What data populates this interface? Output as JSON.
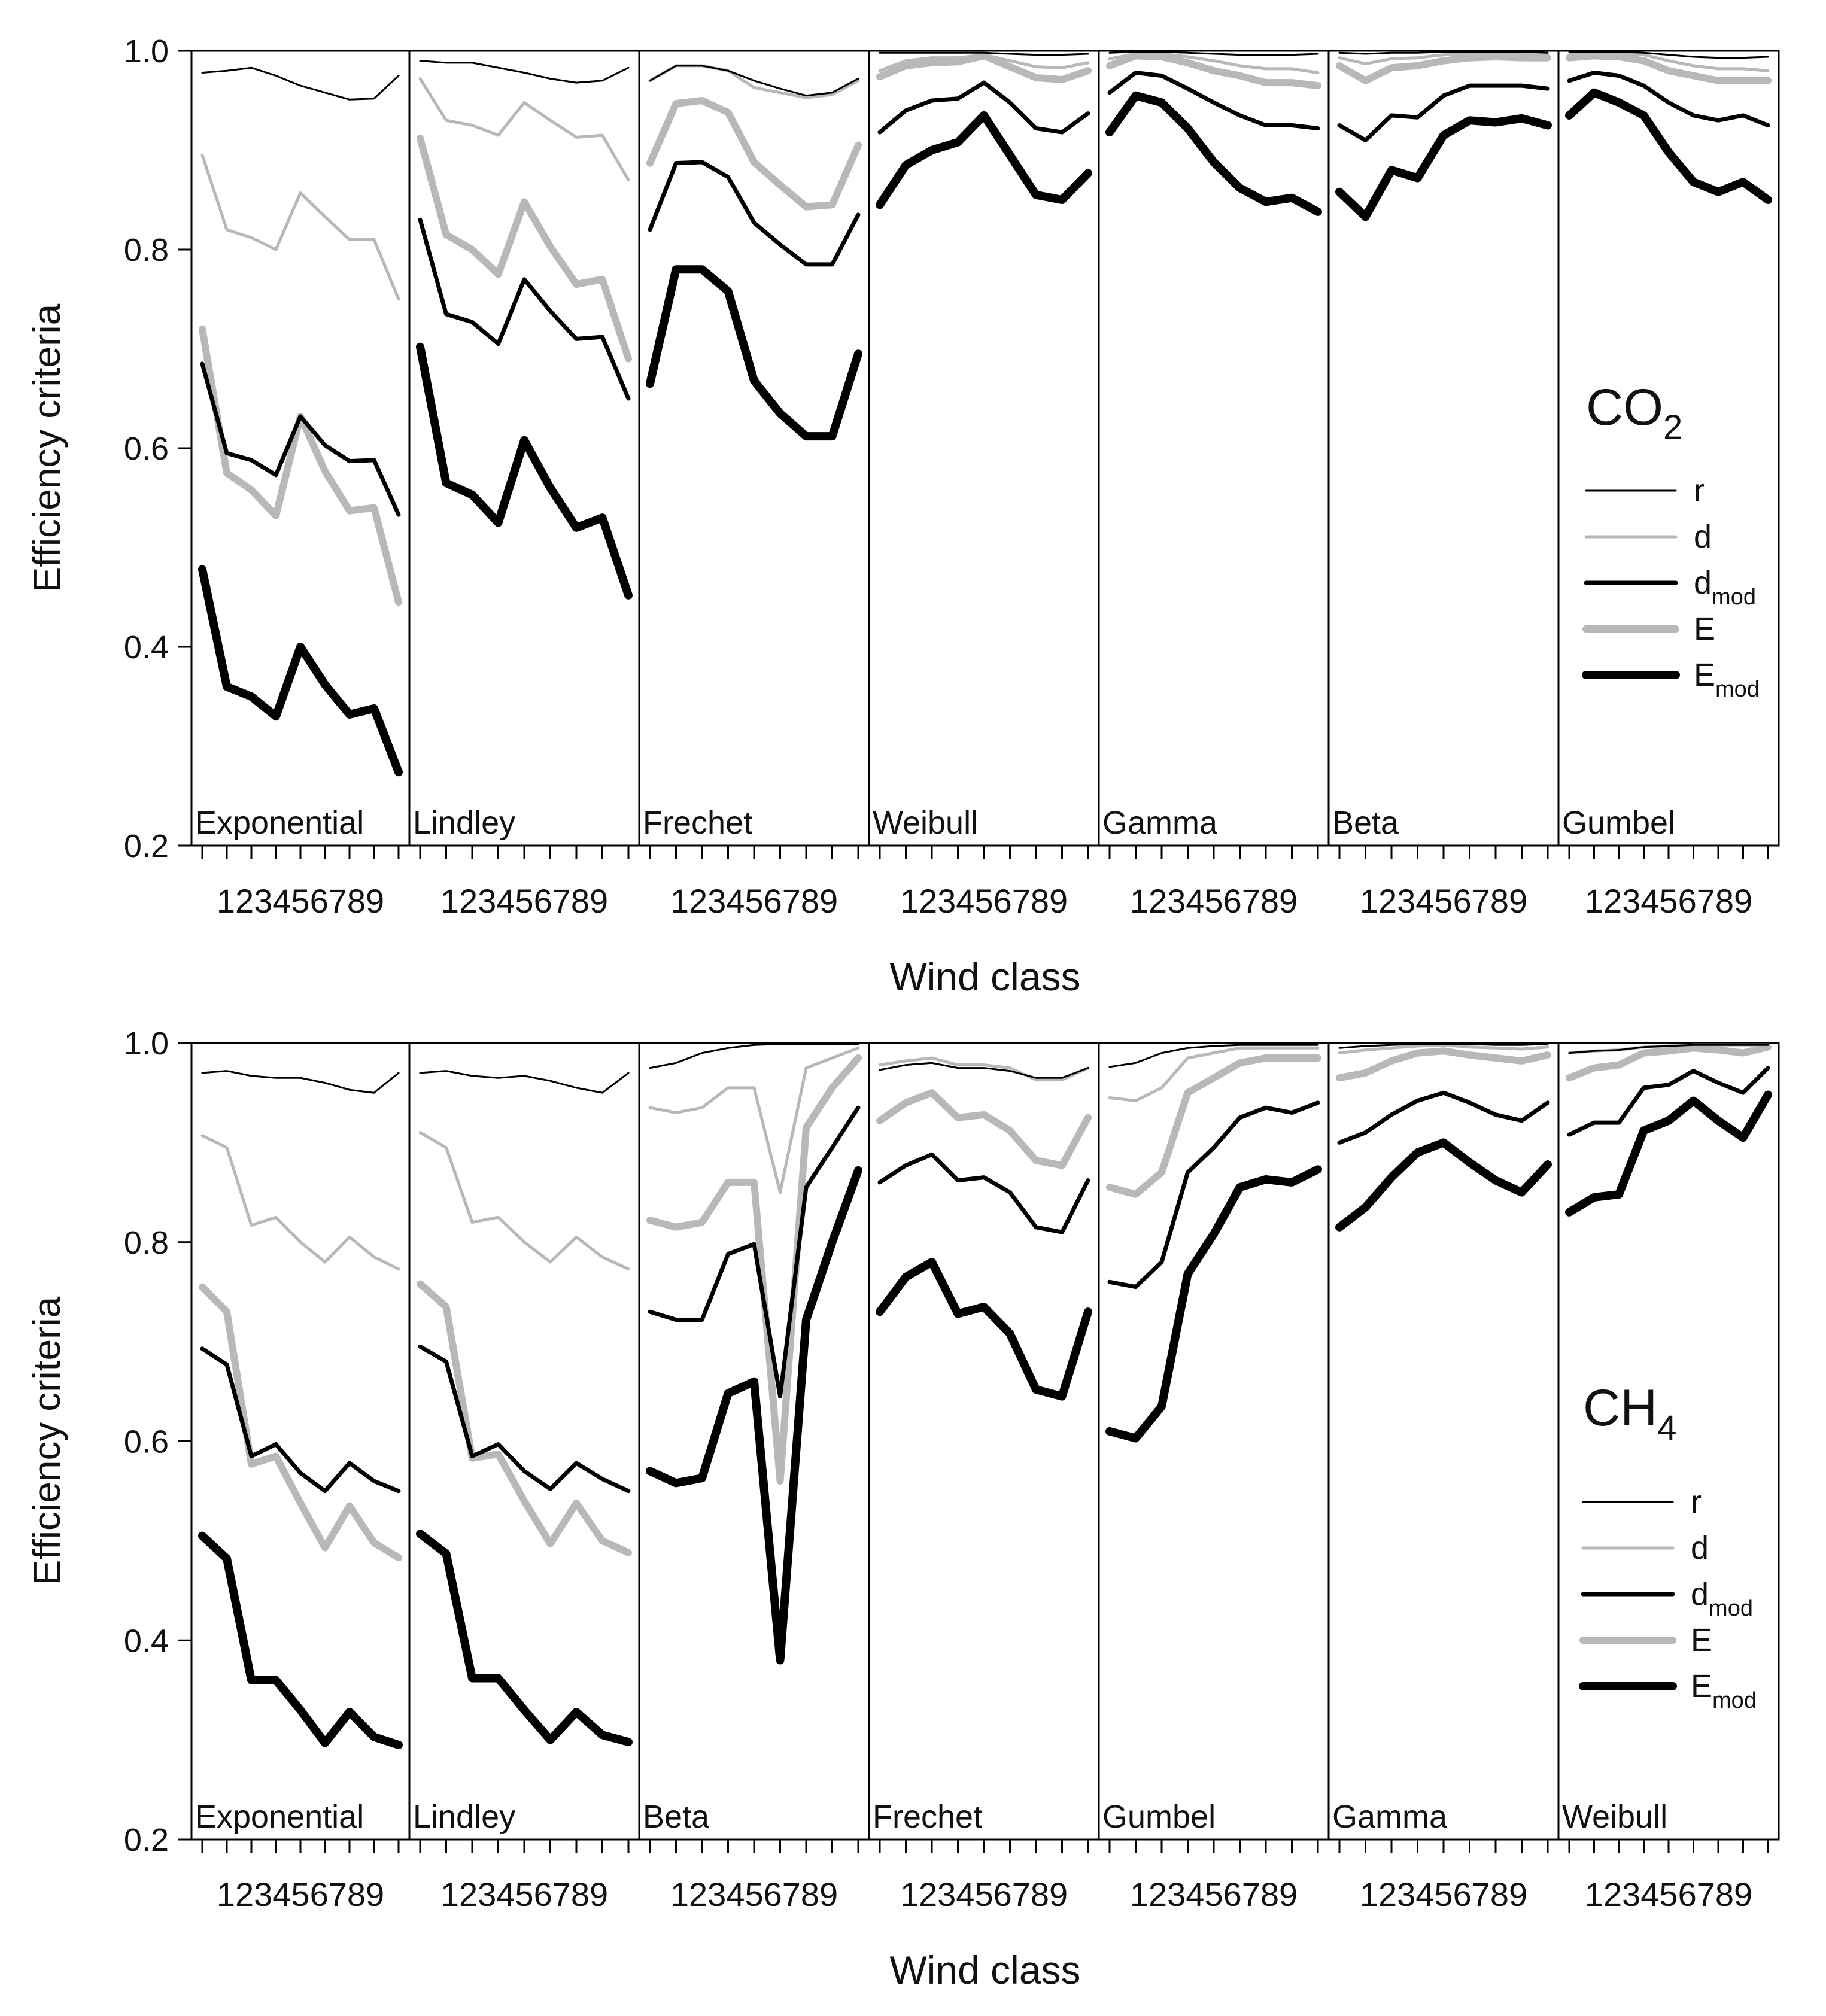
{
  "chart_data": [
    {
      "type": "line",
      "title": "",
      "gas_label": "CO",
      "gas_subscript": "2",
      "xlabel": "Wind class",
      "ylabel": "Efficiency criteria",
      "ylim": [
        0.2,
        1.0
      ],
      "yticks": [
        "0.2",
        "0.4",
        "0.6",
        "0.8",
        "1.0"
      ],
      "x": [
        1,
        2,
        3,
        4,
        5,
        6,
        7,
        8,
        9
      ],
      "x_tick_text": "123456789",
      "legend": [
        {
          "key": "r",
          "main": "r",
          "sub": ""
        },
        {
          "key": "d",
          "main": "d",
          "sub": ""
        },
        {
          "key": "dmod",
          "main": "d",
          "sub": "mod"
        },
        {
          "key": "E",
          "main": "E",
          "sub": ""
        },
        {
          "key": "Emod",
          "main": "E",
          "sub": "mod"
        }
      ],
      "styles": {
        "r": {
          "color": "#000000",
          "width": 3
        },
        "d": {
          "color": "#b8b8b8",
          "width": 5
        },
        "dmod": {
          "color": "#000000",
          "width": 7
        },
        "E": {
          "color": "#b8b8b8",
          "width": 12
        },
        "Emod": {
          "color": "#000000",
          "width": 14
        }
      },
      "panels": [
        {
          "name": "Exponential",
          "series": {
            "r": [
              0.978,
              0.98,
              0.983,
              0.975,
              0.965,
              0.958,
              0.951,
              0.952,
              0.975
            ],
            "d": [
              0.895,
              0.82,
              0.812,
              0.8,
              0.857,
              0.833,
              0.81,
              0.81,
              0.75
            ],
            "dmod": [
              0.685,
              0.595,
              0.588,
              0.573,
              0.632,
              0.603,
              0.587,
              0.588,
              0.533
            ],
            "E": [
              0.72,
              0.575,
              0.558,
              0.532,
              0.632,
              0.577,
              0.537,
              0.54,
              0.445
            ],
            "Emod": [
              0.478,
              0.36,
              0.35,
              0.33,
              0.4,
              0.362,
              0.332,
              0.338,
              0.274
            ]
          }
        },
        {
          "name": "Lindley",
          "series": {
            "r": [
              0.99,
              0.988,
              0.988,
              0.983,
              0.978,
              0.972,
              0.968,
              0.97,
              0.983
            ],
            "d": [
              0.972,
              0.93,
              0.925,
              0.915,
              0.948,
              0.93,
              0.913,
              0.915,
              0.87
            ],
            "dmod": [
              0.83,
              0.735,
              0.727,
              0.705,
              0.77,
              0.738,
              0.71,
              0.712,
              0.65
            ],
            "E": [
              0.912,
              0.815,
              0.8,
              0.775,
              0.848,
              0.803,
              0.765,
              0.77,
              0.69
            ],
            "Emod": [
              0.702,
              0.565,
              0.553,
              0.525,
              0.608,
              0.56,
              0.52,
              0.53,
              0.452
            ]
          }
        },
        {
          "name": "Frechet",
          "series": {
            "r": [
              0.97,
              0.985,
              0.985,
              0.98,
              0.97,
              0.962,
              0.955,
              0.958,
              0.972
            ],
            "d": [
              0.97,
              0.985,
              0.985,
              0.98,
              0.963,
              0.958,
              0.953,
              0.956,
              0.97
            ],
            "dmod": [
              0.82,
              0.887,
              0.888,
              0.873,
              0.827,
              0.805,
              0.785,
              0.785,
              0.835
            ],
            "E": [
              0.887,
              0.947,
              0.95,
              0.938,
              0.888,
              0.865,
              0.843,
              0.845,
              0.905
            ],
            "Emod": [
              0.665,
              0.78,
              0.78,
              0.758,
              0.668,
              0.635,
              0.612,
              0.612,
              0.695
            ]
          }
        },
        {
          "name": "Weibull",
          "series": {
            "r": [
              0.998,
              0.998,
              0.998,
              0.998,
              0.998,
              0.997,
              0.996,
              0.996,
              0.997
            ],
            "d": [
              0.98,
              0.99,
              0.993,
              0.993,
              0.996,
              0.99,
              0.984,
              0.983,
              0.988
            ],
            "dmod": [
              0.918,
              0.94,
              0.95,
              0.952,
              0.968,
              0.948,
              0.922,
              0.918,
              0.937
            ],
            "E": [
              0.974,
              0.985,
              0.988,
              0.989,
              0.995,
              0.984,
              0.973,
              0.971,
              0.98
            ],
            "Emod": [
              0.845,
              0.885,
              0.9,
              0.908,
              0.935,
              0.895,
              0.855,
              0.85,
              0.877
            ]
          }
        },
        {
          "name": "Gamma",
          "series": {
            "r": [
              0.998,
              0.999,
              0.999,
              0.998,
              0.997,
              0.996,
              0.996,
              0.996,
              0.997
            ],
            "d": [
              0.992,
              0.997,
              0.997,
              0.994,
              0.99,
              0.985,
              0.982,
              0.982,
              0.978
            ],
            "dmod": [
              0.958,
              0.978,
              0.975,
              0.962,
              0.948,
              0.935,
              0.925,
              0.925,
              0.922
            ],
            "E": [
              0.985,
              0.995,
              0.994,
              0.988,
              0.98,
              0.975,
              0.968,
              0.968,
              0.965
            ],
            "Emod": [
              0.918,
              0.955,
              0.948,
              0.922,
              0.888,
              0.862,
              0.848,
              0.852,
              0.838
            ]
          }
        },
        {
          "name": "Beta",
          "series": {
            "r": [
              0.998,
              0.997,
              0.998,
              0.998,
              0.999,
              0.999,
              0.999,
              0.999,
              0.998
            ],
            "d": [
              0.993,
              0.987,
              0.992,
              0.993,
              0.996,
              0.997,
              0.997,
              0.996,
              0.996
            ],
            "dmod": [
              0.925,
              0.91,
              0.935,
              0.933,
              0.955,
              0.965,
              0.965,
              0.965,
              0.962
            ],
            "E": [
              0.985,
              0.97,
              0.983,
              0.985,
              0.99,
              0.993,
              0.994,
              0.993,
              0.993
            ],
            "Emod": [
              0.858,
              0.833,
              0.88,
              0.872,
              0.915,
              0.93,
              0.928,
              0.932,
              0.925
            ]
          }
        },
        {
          "name": "Gumbel",
          "series": {
            "r": [
              0.999,
              0.999,
              0.999,
              0.998,
              0.996,
              0.994,
              0.993,
              0.993,
              0.994
            ],
            "d": [
              0.996,
              0.997,
              0.997,
              0.996,
              0.99,
              0.985,
              0.982,
              0.982,
              0.98
            ],
            "dmod": [
              0.97,
              0.978,
              0.975,
              0.965,
              0.948,
              0.935,
              0.93,
              0.935,
              0.925
            ],
            "E": [
              0.993,
              0.995,
              0.994,
              0.99,
              0.98,
              0.975,
              0.97,
              0.97,
              0.97
            ],
            "Emod": [
              0.935,
              0.958,
              0.948,
              0.935,
              0.898,
              0.868,
              0.858,
              0.868,
              0.85
            ]
          }
        }
      ]
    },
    {
      "type": "line",
      "title": "",
      "gas_label": "CH",
      "gas_subscript": "4",
      "xlabel": "Wind class",
      "ylabel": "Efficiency criteria",
      "ylim": [
        0.2,
        1.0
      ],
      "yticks": [
        "0.2",
        "0.4",
        "0.6",
        "0.8",
        "1.0"
      ],
      "x": [
        1,
        2,
        3,
        4,
        5,
        6,
        7,
        8,
        9
      ],
      "x_tick_text": "123456789",
      "legend": [
        {
          "key": "r",
          "main": "r",
          "sub": ""
        },
        {
          "key": "d",
          "main": "d",
          "sub": ""
        },
        {
          "key": "dmod",
          "main": "d",
          "sub": "mod"
        },
        {
          "key": "E",
          "main": "E",
          "sub": ""
        },
        {
          "key": "Emod",
          "main": "E",
          "sub": "mod"
        }
      ],
      "styles": {
        "r": {
          "color": "#000000",
          "width": 3
        },
        "d": {
          "color": "#b8b8b8",
          "width": 5
        },
        "dmod": {
          "color": "#000000",
          "width": 7
        },
        "E": {
          "color": "#b8b8b8",
          "width": 12
        },
        "Emod": {
          "color": "#000000",
          "width": 14
        }
      },
      "panels": [
        {
          "name": "Exponential",
          "series": {
            "r": [
              0.97,
              0.972,
              0.967,
              0.965,
              0.965,
              0.96,
              0.953,
              0.95,
              0.97
            ],
            "d": [
              0.907,
              0.895,
              0.817,
              0.825,
              0.8,
              0.78,
              0.805,
              0.785,
              0.773
            ],
            "dmod": [
              0.693,
              0.677,
              0.585,
              0.597,
              0.568,
              0.55,
              0.578,
              0.56,
              0.55
            ],
            "E": [
              0.755,
              0.73,
              0.577,
              0.585,
              0.538,
              0.493,
              0.535,
              0.498,
              0.483
            ],
            "Emod": [
              0.505,
              0.482,
              0.36,
              0.36,
              0.33,
              0.297,
              0.328,
              0.303,
              0.295
            ]
          }
        },
        {
          "name": "Lindley",
          "series": {
            "r": [
              0.97,
              0.972,
              0.967,
              0.965,
              0.967,
              0.962,
              0.955,
              0.95,
              0.97
            ],
            "d": [
              0.91,
              0.895,
              0.82,
              0.825,
              0.8,
              0.78,
              0.805,
              0.785,
              0.773
            ],
            "dmod": [
              0.695,
              0.68,
              0.585,
              0.597,
              0.57,
              0.552,
              0.578,
              0.562,
              0.55
            ],
            "E": [
              0.758,
              0.735,
              0.583,
              0.587,
              0.54,
              0.497,
              0.538,
              0.5,
              0.488
            ],
            "Emod": [
              0.507,
              0.487,
              0.362,
              0.362,
              0.33,
              0.3,
              0.328,
              0.305,
              0.298
            ]
          }
        },
        {
          "name": "Beta",
          "series": {
            "r": [
              0.975,
              0.98,
              0.99,
              0.995,
              0.998,
              0.999,
              0.999,
              0.999,
              0.999
            ],
            "d": [
              0.935,
              0.93,
              0.935,
              0.955,
              0.955,
              0.85,
              0.975,
              0.985,
              0.995
            ],
            "dmod": [
              0.73,
              0.722,
              0.722,
              0.788,
              0.798,
              0.645,
              0.855,
              0.895,
              0.935
            ],
            "E": [
              0.822,
              0.815,
              0.82,
              0.86,
              0.86,
              0.56,
              0.915,
              0.955,
              0.985
            ],
            "Emod": [
              0.57,
              0.558,
              0.563,
              0.648,
              0.66,
              0.38,
              0.722,
              0.8,
              0.872
            ]
          }
        },
        {
          "name": "Frechet",
          "series": {
            "r": [
              0.973,
              0.978,
              0.98,
              0.975,
              0.975,
              0.972,
              0.965,
              0.965,
              0.975
            ],
            "d": [
              0.978,
              0.982,
              0.985,
              0.978,
              0.978,
              0.975,
              0.963,
              0.963,
              0.975
            ],
            "dmod": [
              0.86,
              0.877,
              0.888,
              0.862,
              0.865,
              0.85,
              0.815,
              0.81,
              0.862
            ],
            "E": [
              0.922,
              0.94,
              0.95,
              0.925,
              0.928,
              0.912,
              0.882,
              0.877,
              0.925
            ],
            "Emod": [
              0.73,
              0.765,
              0.78,
              0.728,
              0.735,
              0.708,
              0.652,
              0.645,
              0.73
            ]
          }
        },
        {
          "name": "Gumbel",
          "series": {
            "r": [
              0.976,
              0.98,
              0.99,
              0.995,
              0.997,
              0.998,
              0.998,
              0.998,
              0.998
            ],
            "d": [
              0.945,
              0.942,
              0.955,
              0.985,
              0.99,
              0.995,
              0.995,
              0.995,
              0.995
            ],
            "dmod": [
              0.76,
              0.755,
              0.78,
              0.87,
              0.895,
              0.925,
              0.935,
              0.93,
              0.94
            ],
            "E": [
              0.855,
              0.848,
              0.87,
              0.95,
              0.965,
              0.98,
              0.985,
              0.985,
              0.985
            ],
            "Emod": [
              0.61,
              0.603,
              0.635,
              0.768,
              0.808,
              0.855,
              0.863,
              0.86,
              0.873
            ]
          }
        },
        {
          "name": "Gamma",
          "series": {
            "r": [
              0.995,
              0.997,
              0.998,
              0.999,
              0.999,
              0.999,
              0.998,
              0.998,
              0.999
            ],
            "d": [
              0.99,
              0.993,
              0.995,
              0.997,
              0.998,
              0.996,
              0.995,
              0.994,
              0.996
            ],
            "dmod": [
              0.9,
              0.91,
              0.928,
              0.942,
              0.95,
              0.94,
              0.928,
              0.922,
              0.94
            ],
            "E": [
              0.965,
              0.97,
              0.982,
              0.99,
              0.992,
              0.988,
              0.985,
              0.982,
              0.988
            ],
            "Emod": [
              0.815,
              0.835,
              0.865,
              0.89,
              0.9,
              0.88,
              0.862,
              0.85,
              0.878
            ]
          }
        },
        {
          "name": "Weibull",
          "series": {
            "r": [
              0.99,
              0.992,
              0.993,
              0.996,
              0.997,
              0.998,
              0.998,
              0.998,
              0.998
            ],
            "d": [
              0.99,
              0.992,
              0.993,
              0.996,
              0.997,
              0.998,
              0.998,
              0.998,
              0.998
            ],
            "dmod": [
              0.908,
              0.92,
              0.92,
              0.955,
              0.958,
              0.972,
              0.96,
              0.95,
              0.975
            ],
            "E": [
              0.965,
              0.975,
              0.978,
              0.99,
              0.992,
              0.995,
              0.993,
              0.99,
              0.996
            ],
            "Emod": [
              0.83,
              0.845,
              0.848,
              0.912,
              0.922,
              0.942,
              0.922,
              0.905,
              0.948
            ]
          }
        }
      ]
    }
  ]
}
